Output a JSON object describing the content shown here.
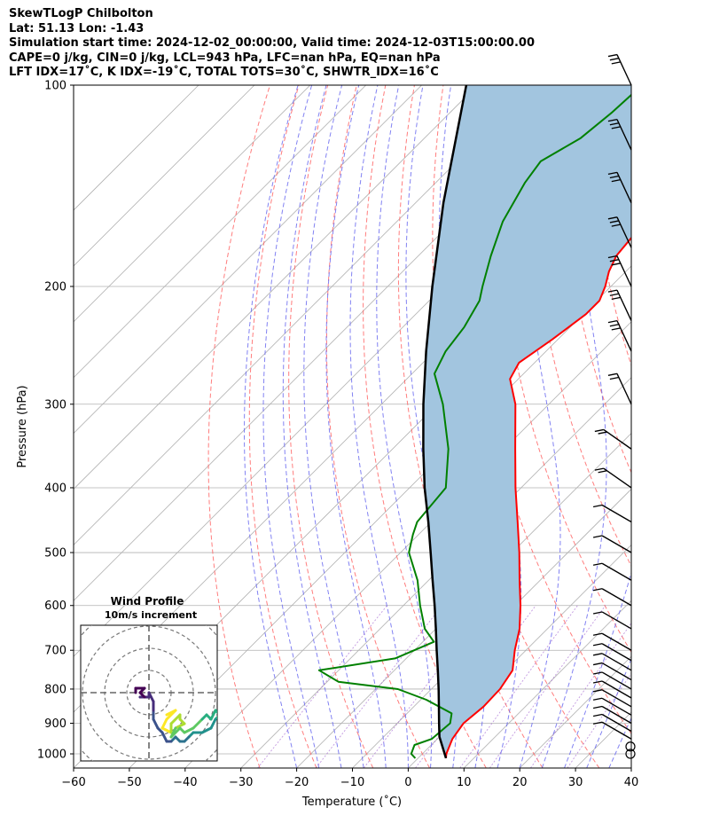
{
  "header": {
    "line1": "SkewTLogP Chilbolton",
    "line2": "Lat: 51.13   Lon: -1.43",
    "line3": "Simulation start time: 2024-12-02_00:00:00, Valid time: 2024-12-03T15:00:00.00",
    "line4": "CAPE=0 j/kg, CIN=0 j/kg, LCL=943 hPa, LFC=nan hPa, EQ=nan hPa",
    "line5": "LFT IDX=17˚C, K IDX=-19˚C, TOTAL TOTS=30˚C, SHWTR_IDX=16˚C"
  },
  "chart_data": [
    {
      "type": "line",
      "name": "skew-t",
      "xlabel": "Temperature (˚C)",
      "ylabel": "Pressure (hPa)",
      "xlim": [
        -60,
        40
      ],
      "ylim": [
        1050,
        100
      ],
      "y_scale": "log",
      "skew": "45 degrees",
      "x_ticks": [
        -60,
        -50,
        -40,
        -30,
        -20,
        -10,
        0,
        10,
        20,
        30,
        40
      ],
      "x_tick_labels": [
        "−60",
        "−50",
        "−40",
        "−30",
        "−20",
        "−10",
        "0",
        "10",
        "20",
        "30",
        "40"
      ],
      "y_ticks": [
        1000,
        900,
        800,
        700,
        600,
        500,
        400,
        300,
        200,
        100
      ],
      "y_tick_labels": [
        "1000",
        "900",
        "800",
        "700",
        "600",
        "500",
        "400",
        "300",
        "200",
        "100"
      ],
      "grid": true,
      "colors": {
        "temperature": "#ff0000",
        "dewpoint": "#008000",
        "parcel": "#000000",
        "shade": "#a2c5df",
        "dry_adiabat": "#ff6666",
        "moist_adiabat": "#6c6cf0",
        "isotherm": "#b0b0b0",
        "mixing_ratio": "#9955cc"
      },
      "series": [
        {
          "key": "temperature",
          "points": [
            [
              1015,
              5.0
            ],
            [
              1000,
              4.3
            ],
            [
              950,
              2.7
            ],
            [
              900,
              1.9
            ],
            [
              850,
              2.5
            ],
            [
              800,
              2.3
            ],
            [
              750,
              1.2
            ],
            [
              700,
              -2.0
            ],
            [
              650,
              -5.0
            ],
            [
              600,
              -9.0
            ],
            [
              550,
              -13.7
            ],
            [
              500,
              -18.7
            ],
            [
              450,
              -24.5
            ],
            [
              400,
              -31.0
            ],
            [
              350,
              -38.0
            ],
            [
              300,
              -46.0
            ],
            [
              275,
              -51.5
            ],
            [
              260,
              -52.8
            ],
            [
              240,
              -51.0
            ],
            [
              220,
              -49.5
            ],
            [
              210,
              -49.5
            ],
            [
              200,
              -51.0
            ],
            [
              190,
              -53.0
            ],
            [
              180,
              -54.5
            ],
            [
              170,
              -55.0
            ],
            [
              160,
              -55.5
            ],
            [
              150,
              -56.5
            ],
            [
              140,
              -58.0
            ],
            [
              130,
              -59.5
            ],
            [
              120,
              -61.0
            ],
            [
              110,
              -63.0
            ],
            [
              100,
              -66.5
            ]
          ]
        },
        {
          "key": "dewpoint",
          "points": [
            [
              1015,
              -0.5
            ],
            [
              1000,
              -2.0
            ],
            [
              970,
              -3.0
            ],
            [
              950,
              -1.0
            ],
            [
              900,
              -0.5
            ],
            [
              870,
              -2.0
            ],
            [
              830,
              -9.0
            ],
            [
              800,
              -16.0
            ],
            [
              780,
              -28.0
            ],
            [
              750,
              -33.5
            ],
            [
              720,
              -22.0
            ],
            [
              680,
              -18.0
            ],
            [
              650,
              -22.0
            ],
            [
              600,
              -27.0
            ],
            [
              550,
              -32.0
            ],
            [
              500,
              -38.5
            ],
            [
              470,
              -41.0
            ],
            [
              450,
              -42.5
            ],
            [
              400,
              -43.5
            ],
            [
              350,
              -50.0
            ],
            [
              300,
              -59.0
            ],
            [
              270,
              -66.0
            ],
            [
              250,
              -68.0
            ],
            [
              230,
              -69.0
            ],
            [
              210,
              -71.0
            ],
            [
              200,
              -73.0
            ],
            [
              180,
              -77.0
            ],
            [
              160,
              -81.0
            ],
            [
              140,
              -84.0
            ],
            [
              130,
              -85.0
            ],
            [
              120,
              -82.0
            ],
            [
              110,
              -81.0
            ],
            [
              100,
              -80.5
            ]
          ]
        },
        {
          "key": "parcel",
          "points": [
            [
              1015,
              5.0
            ],
            [
              943,
              0.0
            ],
            [
              900,
              -2.5
            ],
            [
              850,
              -5.5
            ],
            [
              800,
              -8.7
            ],
            [
              750,
              -12.2
            ],
            [
              700,
              -16.0
            ],
            [
              650,
              -20.0
            ],
            [
              600,
              -24.4
            ],
            [
              550,
              -29.3
            ],
            [
              500,
              -34.6
            ],
            [
              450,
              -40.5
            ],
            [
              400,
              -47.3
            ],
            [
              350,
              -54.5
            ],
            [
              300,
              -62.5
            ],
            [
              250,
              -71.5
            ],
            [
              200,
              -82.0
            ],
            [
              150,
              -95.0
            ],
            [
              100,
              -112.0
            ]
          ]
        }
      ],
      "wind_barbs_hPa": [
        1000,
        975,
        950,
        925,
        900,
        875,
        850,
        825,
        800,
        775,
        750,
        725,
        700,
        650,
        600,
        550,
        500,
        450,
        400,
        350,
        300,
        250,
        225,
        200,
        175,
        150,
        125,
        100
      ]
    },
    {
      "type": "scatter",
      "name": "hodograph",
      "title": "Wind Profile",
      "subtitle": "10m/s increment",
      "ring_step": 10,
      "rings": 3,
      "colormap": "viridis",
      "points_u_v": [
        [
          4,
          5
        ],
        [
          6,
          4
        ],
        [
          4,
          6
        ],
        [
          3,
          8
        ],
        [
          5,
          9
        ],
        [
          5,
          7
        ],
        [
          7,
          5
        ],
        [
          7,
          6
        ],
        [
          8,
          7
        ],
        [
          6,
          8
        ],
        [
          5,
          10
        ],
        [
          7,
          8
        ],
        [
          8,
          9
        ],
        [
          10,
          8
        ],
        [
          12,
          6
        ],
        [
          13,
          5
        ],
        [
          14,
          6
        ],
        [
          15,
          4
        ],
        [
          16,
          5
        ],
        [
          15,
          6
        ],
        [
          14,
          8
        ],
        [
          12,
          9
        ],
        [
          10,
          9
        ],
        [
          9,
          10
        ],
        [
          8,
          11
        ],
        [
          7,
          11
        ],
        [
          6,
          10
        ],
        [
          5,
          11
        ],
        [
          5,
          11
        ],
        [
          4,
          11
        ],
        [
          3,
          9
        ],
        [
          2,
          8
        ],
        [
          1,
          6
        ],
        [
          1,
          4
        ],
        [
          1,
          2
        ],
        [
          0,
          0
        ],
        [
          0,
          1
        ],
        [
          -2,
          1
        ],
        [
          -1,
          1
        ],
        [
          -2,
          0
        ],
        [
          -1,
          -1
        ],
        [
          -3,
          -1
        ],
        [
          -3,
          0
        ]
      ]
    }
  ]
}
